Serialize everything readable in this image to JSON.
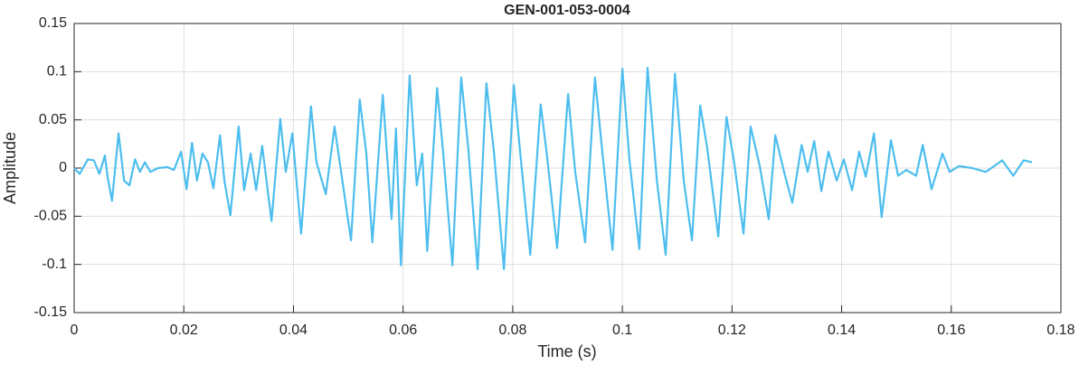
{
  "chart_data": {
    "type": "line",
    "title": "GEN-001-053-0004",
    "x_label": "Time (s)",
    "y_label": "Amplitude",
    "xlim": [
      0,
      0.18
    ],
    "ylim": [
      -0.15,
      0.15
    ],
    "xticks": [
      0,
      0.02,
      0.04,
      0.06,
      0.08,
      0.1,
      0.12,
      0.14,
      0.16,
      0.18
    ],
    "yticks": [
      -0.15,
      -0.1,
      -0.05,
      0,
      0.05,
      0.1,
      0.15
    ],
    "grid": true,
    "series": [
      {
        "color": "#4dbeee",
        "x": [
          0,
          0.001,
          0.0025,
          0.0036,
          0.0046,
          0.0056,
          0.0061,
          0.0069,
          0.0081,
          0.0091,
          0.0101,
          0.0111,
          0.012,
          0.0129,
          0.0139,
          0.0153,
          0.017,
          0.0182,
          0.0195,
          0.0205,
          0.0215,
          0.0224,
          0.0234,
          0.0244,
          0.0254,
          0.0266,
          0.0274,
          0.0285,
          0.03,
          0.031,
          0.0322,
          0.0332,
          0.0343,
          0.036,
          0.0376,
          0.0386,
          0.0398,
          0.0414,
          0.0432,
          0.0442,
          0.0459,
          0.0475,
          0.0505,
          0.0521,
          0.0533,
          0.0544,
          0.0563,
          0.0579,
          0.0587,
          0.0596,
          0.0612,
          0.0625,
          0.0635,
          0.0644,
          0.0662,
          0.0673,
          0.069,
          0.0706,
          0.0719,
          0.0736,
          0.0752,
          0.0766,
          0.0784,
          0.0802,
          0.0815,
          0.0832,
          0.0851,
          0.0861,
          0.0881,
          0.0901,
          0.0914,
          0.0932,
          0.095,
          0.0965,
          0.0982,
          0.1,
          0.1013,
          0.1031,
          0.1046,
          0.1063,
          0.1079,
          0.1096,
          0.1112,
          0.1127,
          0.1142,
          0.1155,
          0.1175,
          0.119,
          0.1204,
          0.1221,
          0.1234,
          0.1251,
          0.1267,
          0.1279,
          0.1295,
          0.131,
          0.1327,
          0.1338,
          0.135,
          0.1363,
          0.1376,
          0.1391,
          0.1404,
          0.1419,
          0.1432,
          0.1444,
          0.1459,
          0.1473,
          0.149,
          0.1503,
          0.1518,
          0.1536,
          0.1548,
          0.1564,
          0.1584,
          0.1597,
          0.1614,
          0.1638,
          0.1663,
          0.1693,
          0.1713,
          0.1732,
          0.1747
        ],
        "values": [
          0,
          -0.006,
          0.009,
          0.008,
          -0.006,
          0.013,
          -0.009,
          -0.034,
          0.036,
          -0.013,
          -0.018,
          0.009,
          -0.004,
          0.006,
          -0.004,
          0,
          0.001,
          -0.002,
          0.017,
          -0.022,
          0.026,
          -0.013,
          0.015,
          0.006,
          -0.021,
          0.034,
          -0.013,
          -0.049,
          0.043,
          -0.023,
          0.015,
          -0.023,
          0.023,
          -0.055,
          0.051,
          -0.004,
          0.036,
          -0.068,
          0.064,
          0.006,
          -0.027,
          0.043,
          -0.075,
          0.071,
          0.015,
          -0.077,
          0.076,
          -0.053,
          0.041,
          -0.101,
          0.096,
          -0.018,
          0.015,
          -0.086,
          0.083,
          0.017,
          -0.101,
          0.094,
          0.02,
          -0.105,
          0.088,
          0.015,
          -0.105,
          0.086,
          0.008,
          -0.09,
          0.066,
          0.02,
          -0.083,
          0.077,
          -0.004,
          -0.077,
          0.094,
          0.008,
          -0.085,
          0.103,
          0.008,
          -0.084,
          0.104,
          -0.013,
          -0.09,
          0.098,
          -0.013,
          -0.075,
          0.065,
          0.02,
          -0.071,
          0.053,
          0.006,
          -0.068,
          0.043,
          0.001,
          -0.053,
          0.034,
          -0.004,
          -0.036,
          0.024,
          -0.004,
          0.028,
          -0.024,
          0.017,
          -0.013,
          0.009,
          -0.023,
          0.017,
          -0.009,
          0.036,
          -0.051,
          0.029,
          -0.008,
          -0.002,
          -0.008,
          0.024,
          -0.022,
          0.015,
          -0.004,
          0.002,
          0,
          -0.004,
          0.008,
          -0.008,
          0.008,
          0.006
        ]
      }
    ]
  }
}
